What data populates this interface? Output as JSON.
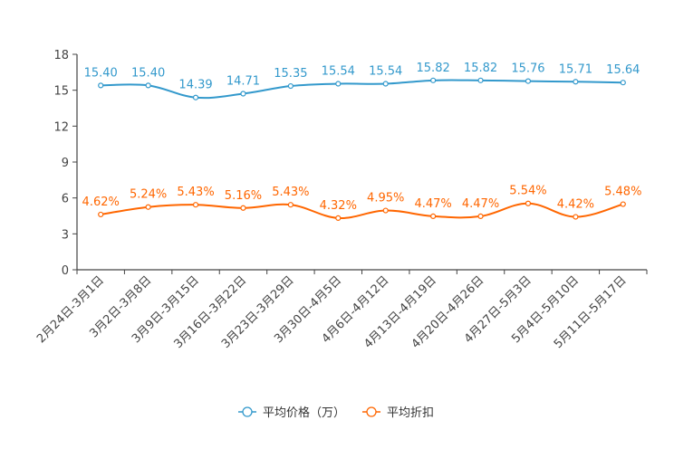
{
  "chart_data": {
    "type": "line",
    "title": "",
    "xlabel": "",
    "ylabel": "",
    "ylim": [
      0,
      18
    ],
    "yticks": [
      0,
      3,
      6,
      9,
      12,
      15,
      18
    ],
    "grid": false,
    "legend_position": "bottom-center",
    "categories": [
      "2月24日-3月1日",
      "3月2日-3月8日",
      "3月9日-3月15日",
      "3月16日-3月22日",
      "3月23日-3月29日",
      "3月30日-4月5日",
      "4月6日-4月12日",
      "4月13日-4月19日",
      "4月20日-4月26日",
      "4月27日-5月3日",
      "5月4日-5月10日",
      "5月11日-5月17日"
    ],
    "series": [
      {
        "name": "平均价格（万）",
        "color": "#3399CC",
        "values": [
          15.4,
          15.4,
          14.39,
          14.71,
          15.35,
          15.54,
          15.54,
          15.82,
          15.82,
          15.76,
          15.71,
          15.64
        ],
        "labels": [
          "15.40",
          "15.40",
          "14.39",
          "14.71",
          "15.35",
          "15.54",
          "15.54",
          "15.82",
          "15.82",
          "15.76",
          "15.71",
          "15.64"
        ]
      },
      {
        "name": "平均折扣",
        "color": "#FF6600",
        "values": [
          4.62,
          5.24,
          5.43,
          5.16,
          5.43,
          4.32,
          4.95,
          4.47,
          4.47,
          5.54,
          4.42,
          5.48
        ],
        "labels": [
          "4.62%",
          "5.24%",
          "5.43%",
          "5.16%",
          "5.43%",
          "4.32%",
          "4.95%",
          "4.47%",
          "4.47%",
          "5.54%",
          "4.42%",
          "5.48%"
        ]
      }
    ]
  }
}
